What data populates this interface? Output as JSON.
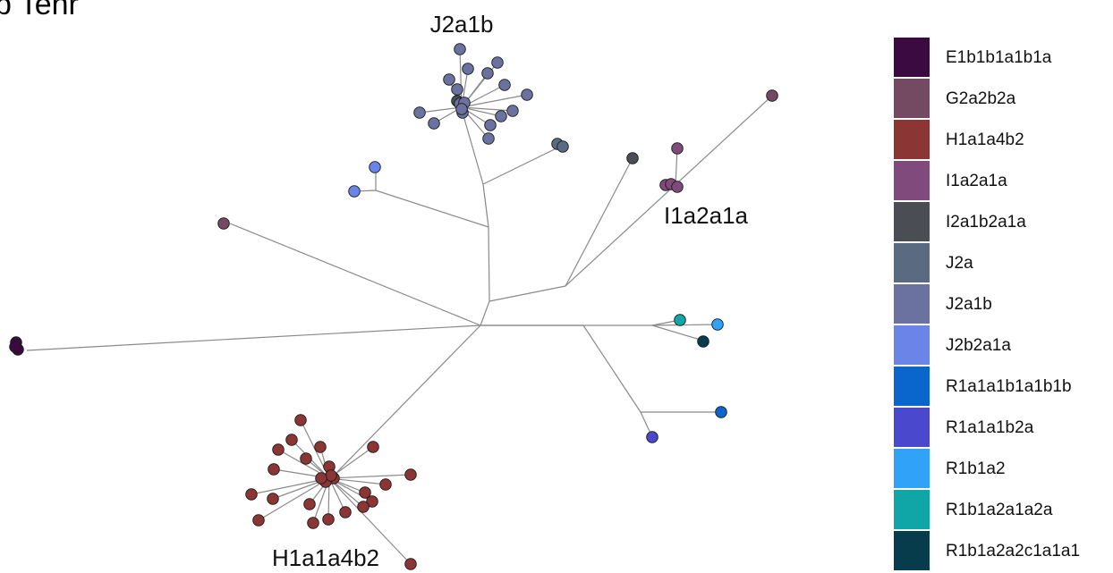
{
  "panel_title": "b   Tehr",
  "clade_labels": {
    "j2a1b": "J2a1b",
    "i1a2a1a": "I1a2a1a",
    "h1a1a4b2": "H1a1a4b2"
  },
  "legend": [
    {
      "label": "E1b1b1a1b1a",
      "color": "#3a0a40"
    },
    {
      "label": "G2a2b2a",
      "color": "#744a62"
    },
    {
      "label": "H1a1a4b2",
      "color": "#8b3634"
    },
    {
      "label": "I1a2a1a",
      "color": "#804a7c"
    },
    {
      "label": "I2a1b2a1a",
      "color": "#4a4d53"
    },
    {
      "label": "J2a",
      "color": "#5a6a80"
    },
    {
      "label": "J2a1b",
      "color": "#6c72a0"
    },
    {
      "label": "J2b2a1a",
      "color": "#6a84e8"
    },
    {
      "label": "R1a1a1b1a1b1b",
      "color": "#0a66cc"
    },
    {
      "label": "R1a1a1b2a",
      "color": "#4a48cc"
    },
    {
      "label": "R1b1a2",
      "color": "#30a2f8"
    },
    {
      "label": "R1b1a2a1a2a",
      "color": "#10a6a8"
    },
    {
      "label": "R1b1a2a2c1a1a1",
      "color": "#073c4c"
    }
  ]
}
